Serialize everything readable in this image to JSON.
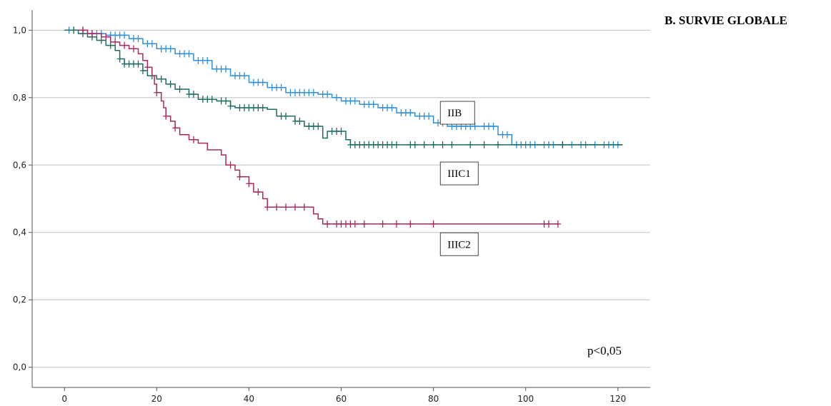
{
  "chart_data": {
    "type": "line",
    "title": "B. SURVIE GLOBALE",
    "xlabel": "",
    "ylabel": "",
    "xlim": [
      -7,
      127
    ],
    "ylim": [
      -0.06,
      1.06
    ],
    "x_ticks": [
      "0",
      "20",
      "40",
      "60",
      "80",
      "100",
      "120"
    ],
    "y_ticks": [
      "0,0",
      "0,2",
      "0,4",
      "0,6",
      "0,8",
      "1,0"
    ],
    "grid": "horizontal",
    "annotation": "p<0,05",
    "series": [
      {
        "name": "IIB",
        "color": "#2f8fd8",
        "points": [
          [
            0,
            1.0
          ],
          [
            3,
            1.0
          ],
          [
            5,
            0.99
          ],
          [
            9,
            0.985
          ],
          [
            14,
            0.975
          ],
          [
            17,
            0.96
          ],
          [
            20,
            0.945
          ],
          [
            24,
            0.93
          ],
          [
            28,
            0.91
          ],
          [
            32,
            0.885
          ],
          [
            36,
            0.865
          ],
          [
            40,
            0.845
          ],
          [
            44,
            0.83
          ],
          [
            48,
            0.815
          ],
          [
            55,
            0.81
          ],
          [
            58,
            0.8
          ],
          [
            60,
            0.79
          ],
          [
            64,
            0.78
          ],
          [
            68,
            0.77
          ],
          [
            72,
            0.755
          ],
          [
            76,
            0.745
          ],
          [
            80,
            0.725
          ],
          [
            83,
            0.715
          ],
          [
            90,
            0.715
          ],
          [
            94,
            0.69
          ],
          [
            97,
            0.66
          ],
          [
            121,
            0.66
          ]
        ],
        "censor_x": [
          1,
          2,
          4,
          6,
          7,
          8,
          10,
          11,
          12,
          13,
          15,
          16,
          18,
          19,
          21,
          22,
          23,
          25,
          26,
          27,
          29,
          30,
          31,
          33,
          34,
          35,
          37,
          38,
          39,
          41,
          42,
          43,
          45,
          46,
          47,
          49,
          50,
          51,
          52,
          53,
          54,
          56,
          57,
          59,
          61,
          62,
          63,
          65,
          66,
          67,
          69,
          70,
          71,
          73,
          74,
          75,
          77,
          78,
          79,
          81,
          82,
          84,
          85,
          86,
          87,
          88,
          89,
          91,
          92,
          93,
          95,
          96,
          98,
          99,
          100,
          101,
          102,
          104,
          105,
          106,
          108,
          110,
          112,
          113,
          115,
          117,
          118,
          119,
          120
        ]
      },
      {
        "name": "IIIC1",
        "color": "#1f6b63",
        "points": [
          [
            0,
            1.0
          ],
          [
            3,
            0.99
          ],
          [
            5,
            0.98
          ],
          [
            7,
            0.97
          ],
          [
            9,
            0.955
          ],
          [
            11,
            0.94
          ],
          [
            12,
            0.915
          ],
          [
            13,
            0.9
          ],
          [
            17,
            0.88
          ],
          [
            18,
            0.865
          ],
          [
            20,
            0.855
          ],
          [
            22,
            0.84
          ],
          [
            24,
            0.825
          ],
          [
            27,
            0.81
          ],
          [
            29,
            0.795
          ],
          [
            33,
            0.79
          ],
          [
            36,
            0.775
          ],
          [
            37,
            0.77
          ],
          [
            44,
            0.765
          ],
          [
            46,
            0.745
          ],
          [
            50,
            0.73
          ],
          [
            52,
            0.715
          ],
          [
            57,
            0.7
          ],
          [
            56,
            0.68
          ],
          [
            61,
            0.675
          ],
          [
            62,
            0.66
          ],
          [
            121,
            0.66
          ]
        ],
        "censor_x": [
          2,
          4,
          6,
          8,
          10,
          12,
          13,
          14,
          15,
          16,
          17,
          19,
          21,
          23,
          25,
          27,
          28,
          30,
          31,
          32,
          34,
          35,
          36,
          38,
          39,
          40,
          41,
          42,
          43,
          47,
          48,
          50,
          51,
          53,
          54,
          55,
          58,
          59,
          60,
          62,
          63,
          64,
          65,
          66,
          67,
          68,
          69,
          70,
          71,
          72,
          75,
          76,
          78,
          80,
          82,
          84,
          88,
          91,
          94,
          108
        ]
      },
      {
        "name": "IIIC2",
        "color": "#a8285e",
        "points": [
          [
            3,
            1.0
          ],
          [
            5,
            0.99
          ],
          [
            8,
            0.98
          ],
          [
            10,
            0.965
          ],
          [
            12,
            0.955
          ],
          [
            14,
            0.945
          ],
          [
            16,
            0.93
          ],
          [
            17,
            0.91
          ],
          [
            18,
            0.89
          ],
          [
            19,
            0.865
          ],
          [
            19.5,
            0.84
          ],
          [
            20,
            0.815
          ],
          [
            21,
            0.79
          ],
          [
            21.5,
            0.77
          ],
          [
            22,
            0.745
          ],
          [
            23,
            0.73
          ],
          [
            24,
            0.71
          ],
          [
            25,
            0.69
          ],
          [
            27,
            0.675
          ],
          [
            29,
            0.665
          ],
          [
            31,
            0.645
          ],
          [
            34,
            0.63
          ],
          [
            35,
            0.6
          ],
          [
            37,
            0.585
          ],
          [
            38,
            0.565
          ],
          [
            40,
            0.545
          ],
          [
            41,
            0.52
          ],
          [
            43,
            0.5
          ],
          [
            44,
            0.475
          ],
          [
            53,
            0.475
          ],
          [
            54,
            0.455
          ],
          [
            55,
            0.44
          ],
          [
            56,
            0.425
          ],
          [
            107,
            0.425
          ]
        ],
        "censor_x": [
          4,
          6,
          9,
          11,
          13,
          15,
          18,
          20,
          22,
          24,
          28,
          36,
          38,
          40,
          42,
          44,
          46,
          48,
          50,
          52,
          57,
          59,
          60,
          61,
          62,
          63,
          65,
          69,
          72,
          75,
          80,
          104,
          105,
          107
        ]
      }
    ],
    "series_labels": [
      {
        "text": "IIB",
        "x": 81.5,
        "y": 0.755
      },
      {
        "text": "IIIC1",
        "x": 81.5,
        "y": 0.575
      },
      {
        "text": "IIIC2",
        "x": 81.5,
        "y": 0.365
      }
    ]
  }
}
